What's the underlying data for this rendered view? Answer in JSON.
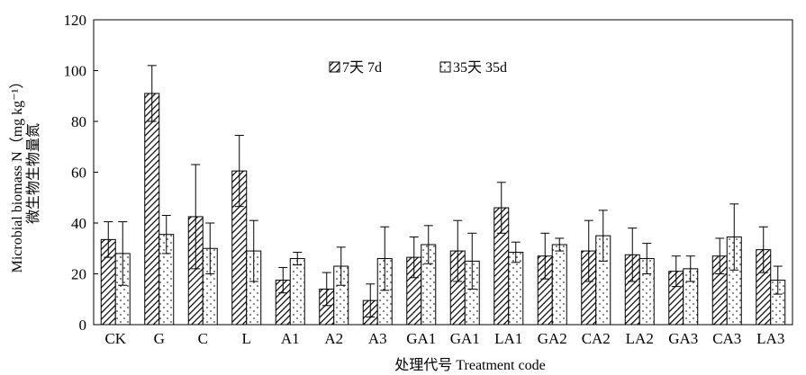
{
  "chart_data": {
    "type": "bar",
    "xlabel": "处理代号 Treatment code",
    "ylabel": [
      "Microbial biomass N（mg kg⁻¹）",
      "微生物生物量氮"
    ],
    "ylim": [
      0,
      120
    ],
    "yticks": [
      0,
      20,
      40,
      60,
      80,
      100,
      120
    ],
    "categories": [
      "CK",
      "G",
      "C",
      "L",
      "A1",
      "A2",
      "A3",
      "GA1",
      "GA1",
      "LA1",
      "GA2",
      "CA2",
      "LA2",
      "GA3",
      "CA3",
      "LA3"
    ],
    "legend_position": "top-center",
    "series": [
      {
        "name": "7天 7d",
        "pattern": "diagonal-hatch",
        "values": [
          33.5,
          91,
          42.5,
          60.5,
          17.5,
          14,
          9.5,
          26.5,
          29,
          46,
          27,
          29,
          27.5,
          21,
          27,
          29.5
        ],
        "errors": [
          7,
          11,
          20.5,
          14,
          5,
          6.5,
          6.5,
          8,
          12,
          10,
          9,
          12,
          10.5,
          6,
          7,
          9
        ]
      },
      {
        "name": "35天 35d",
        "pattern": "dotted",
        "values": [
          28,
          35.5,
          30,
          29,
          26,
          23,
          26,
          31.5,
          25,
          28.5,
          31.5,
          35,
          26,
          22,
          34.5,
          17.5
        ],
        "errors": [
          12.5,
          7.5,
          10,
          12,
          2.5,
          7.5,
          12.5,
          7.5,
          11,
          4,
          2.5,
          10,
          6,
          5,
          13,
          5.5
        ]
      }
    ]
  }
}
